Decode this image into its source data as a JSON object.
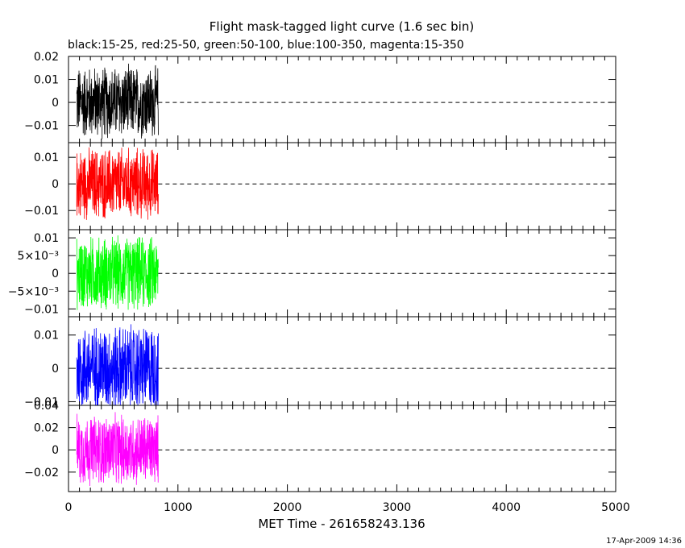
{
  "title": "Flight mask-tagged light curve (1.6 sec bin)",
  "subtitle": "black:15-25, red:25-50, green:50-100, blue:100-350, magenta:15-350",
  "footer_date": "17-Apr-2009 14:36",
  "chart_data": {
    "type": "line",
    "title": "Flight mask-tagged light curve (1.6 sec bin)",
    "subtitle": "black:15-25, red:25-50, green:50-100, blue:100-350, magenta:15-350",
    "xlabel": "MET Time - 261658243.136",
    "xlim": [
      0,
      5000
    ],
    "x_ticks": [
      0,
      1000,
      2000,
      3000,
      4000,
      5000
    ],
    "x_tick_labels": [
      "0",
      "1000",
      "2000",
      "3000",
      "4000",
      "5000"
    ],
    "data_x_range": [
      75,
      820
    ],
    "bin_seconds": 1.6,
    "zero_line": "dashed",
    "panels": [
      {
        "series_color": "#000000",
        "band": "15-25",
        "ylim": [
          -0.0175,
          0.02
        ],
        "y_ticks": [
          0.02,
          0.01,
          0,
          -0.01
        ],
        "y_tick_labels": [
          "0.02",
          "0.01",
          "0",
          "−0.01"
        ],
        "amplitude": 0.0175
      },
      {
        "series_color": "#ff0000",
        "band": "25-50",
        "ylim": [
          -0.0172,
          0.0155
        ],
        "y_ticks": [
          0.01,
          0,
          -0.01
        ],
        "y_tick_labels": [
          "0.01",
          "0",
          "−0.01"
        ],
        "amplitude": 0.015
      },
      {
        "series_color": "#00ff00",
        "band": "50-100",
        "ylim": [
          -0.0122,
          0.0123
        ],
        "y_ticks": [
          0.01,
          0.005,
          0,
          -0.005,
          -0.01
        ],
        "y_tick_labels": [
          "0.01",
          "5×10⁻³",
          "0",
          "−5×10⁻³",
          "−0.01"
        ],
        "amplitude": 0.0115
      },
      {
        "series_color": "#0000ff",
        "band": "100-350",
        "ylim": [
          -0.0111,
          0.0155
        ],
        "y_ticks": [
          0.01,
          0,
          -0.01
        ],
        "y_tick_labels": [
          "0.01",
          "0",
          "−0.01"
        ],
        "amplitude": 0.0145
      },
      {
        "series_color": "#ff00ff",
        "band": "15-350",
        "ylim": [
          -0.0375,
          0.04
        ],
        "y_ticks": [
          0.04,
          0.02,
          0,
          -0.02
        ],
        "y_tick_labels": [
          "0.04",
          "0.02",
          "0",
          "−0.02"
        ],
        "amplitude": 0.035
      }
    ]
  }
}
